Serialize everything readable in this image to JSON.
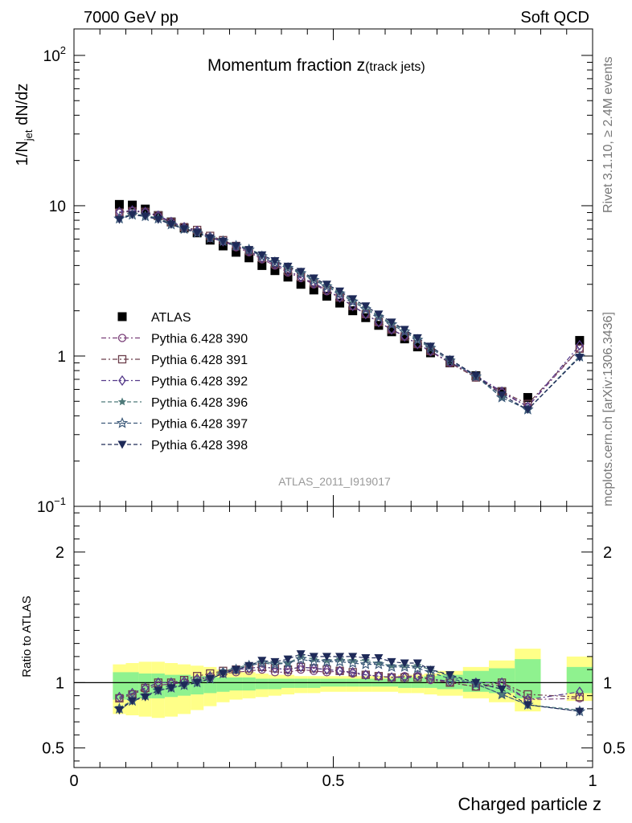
{
  "header": {
    "left": "7000 GeV pp",
    "right": "Soft QCD",
    "side_top": "Rivet 3.1.10, ≥ 2.4M events",
    "side_bottom": "mcplots.cern.ch [arXiv:1306.3436]"
  },
  "chart_data": [
    {
      "type": "scatter",
      "title": "Momentum fraction z",
      "title_sub": "(track jets)",
      "ylabel_main": "1/N",
      "ylabel_sub": "jet",
      "ylabel_tail": " dN/dz",
      "yscale": "log",
      "ylim": [
        0.1,
        150
      ],
      "xlim": [
        0,
        1
      ],
      "yticks": [
        {
          "label": "10",
          "exp": "−1"
        },
        {
          "label": "1",
          "exp": ""
        },
        {
          "label": "10",
          "exp": ""
        },
        {
          "label": "10",
          "exp": "2"
        }
      ],
      "watermark": "ATLAS_2011_I919017",
      "legend_position": "middle-left",
      "x": [
        0.0875,
        0.1125,
        0.1375,
        0.1625,
        0.1875,
        0.2125,
        0.2375,
        0.2625,
        0.2875,
        0.3125,
        0.3375,
        0.3625,
        0.3875,
        0.4125,
        0.4375,
        0.4625,
        0.4875,
        0.5125,
        0.5375,
        0.5625,
        0.5875,
        0.6125,
        0.6375,
        0.6625,
        0.6875,
        0.725,
        0.775,
        0.825,
        0.875,
        0.975
      ],
      "series": [
        {
          "name": "ATLAS",
          "marker": "square-filled",
          "color": "#000000",
          "values": [
            10.2,
            10.1,
            9.5,
            8.6,
            7.8,
            7.1,
            6.6,
            5.9,
            5.4,
            4.9,
            4.5,
            4.0,
            3.7,
            3.35,
            3.0,
            2.75,
            2.5,
            2.25,
            2.0,
            1.8,
            1.6,
            1.45,
            1.3,
            1.15,
            1.05,
            0.9,
            0.74,
            0.58,
            0.53,
            1.27
          ]
        },
        {
          "name": "Pythia 6.428 390",
          "marker": "circle-open",
          "color": "#7a3f78",
          "values": [
            9.0,
            9.2,
            9.0,
            8.5,
            7.7,
            7.1,
            6.7,
            6.1,
            5.8,
            5.3,
            4.9,
            4.4,
            4.0,
            3.6,
            3.3,
            3.0,
            2.7,
            2.45,
            2.15,
            1.9,
            1.68,
            1.5,
            1.36,
            1.2,
            1.07,
            0.9,
            0.72,
            0.57,
            0.46,
            1.12
          ]
        },
        {
          "name": "Pythia 6.428 391",
          "marker": "square-open",
          "color": "#6b3d4a",
          "values": [
            9.0,
            9.2,
            9.1,
            8.6,
            7.8,
            7.2,
            6.9,
            6.3,
            5.9,
            5.4,
            5.0,
            4.5,
            4.1,
            3.7,
            3.35,
            3.05,
            2.75,
            2.45,
            2.15,
            1.9,
            1.68,
            1.5,
            1.35,
            1.2,
            1.08,
            0.9,
            0.72,
            0.58,
            0.48,
            1.12
          ]
        },
        {
          "name": "Pythia 6.428 392",
          "marker": "diamond-open",
          "color": "#553a8a",
          "values": [
            9.1,
            9.3,
            9.1,
            8.6,
            7.8,
            7.2,
            6.8,
            6.2,
            5.8,
            5.4,
            5.0,
            4.5,
            4.1,
            3.7,
            3.35,
            3.05,
            2.75,
            2.45,
            2.15,
            1.9,
            1.68,
            1.5,
            1.35,
            1.2,
            1.08,
            0.91,
            0.74,
            0.58,
            0.46,
            1.18
          ]
        },
        {
          "name": "Pythia 6.428 396",
          "marker": "star-filled",
          "color": "#4e7a7a",
          "values": [
            8.3,
            8.8,
            8.6,
            8.3,
            7.6,
            7.1,
            6.7,
            6.2,
            5.9,
            5.5,
            5.2,
            4.7,
            4.3,
            3.9,
            3.6,
            3.25,
            2.95,
            2.65,
            2.35,
            2.1,
            1.85,
            1.65,
            1.48,
            1.3,
            1.15,
            0.95,
            0.74,
            0.53,
            0.44,
            1.0
          ]
        },
        {
          "name": "Pythia 6.428 397",
          "marker": "star-open",
          "color": "#3d5a7a",
          "values": [
            8.2,
            8.7,
            8.5,
            8.2,
            7.5,
            7.0,
            6.6,
            6.1,
            5.8,
            5.4,
            5.1,
            4.6,
            4.2,
            3.85,
            3.55,
            3.2,
            2.9,
            2.6,
            2.3,
            2.05,
            1.82,
            1.62,
            1.45,
            1.28,
            1.13,
            0.93,
            0.73,
            0.53,
            0.44,
            0.99
          ]
        },
        {
          "name": "Pythia 6.428 398",
          "marker": "triangle-down-filled",
          "color": "#1e2a58",
          "values": [
            8.1,
            8.7,
            8.5,
            8.1,
            7.5,
            7.0,
            6.6,
            6.1,
            5.8,
            5.4,
            5.1,
            4.7,
            4.3,
            3.95,
            3.65,
            3.3,
            3.0,
            2.7,
            2.4,
            2.15,
            1.9,
            1.68,
            1.5,
            1.32,
            1.16,
            0.95,
            0.74,
            0.55,
            0.44,
            0.98
          ]
        }
      ]
    },
    {
      "type": "scatter",
      "ylabel": "Ratio to ATLAS",
      "ylim": [
        0.35,
        2.35
      ],
      "xlim": [
        0,
        1
      ],
      "xlabel": "Charged particle z",
      "xticks": [
        "0",
        "0.5",
        "1"
      ],
      "yticks": [
        "0.5",
        "1",
        "2"
      ],
      "reference_line": 1,
      "bands": {
        "inner_color": "#8ff28f",
        "outer_color": "#ffff88",
        "edges": [
          0.075,
          0.1,
          0.125,
          0.15,
          0.175,
          0.2,
          0.225,
          0.25,
          0.275,
          0.3,
          0.325,
          0.35,
          0.375,
          0.4,
          0.425,
          0.45,
          0.475,
          0.5,
          0.525,
          0.55,
          0.575,
          0.6,
          0.625,
          0.65,
          0.675,
          0.7,
          0.75,
          0.8,
          0.85,
          0.9,
          0.95,
          1.0
        ],
        "inner": [
          [
            0.87,
            1.08
          ],
          [
            0.87,
            1.08
          ],
          [
            0.88,
            1.07
          ],
          [
            0.88,
            1.07
          ],
          [
            0.89,
            1.06
          ],
          [
            0.9,
            1.06
          ],
          [
            0.91,
            1.05
          ],
          [
            0.92,
            1.05
          ],
          [
            0.93,
            1.04
          ],
          [
            0.94,
            1.04
          ],
          [
            0.94,
            1.04
          ],
          [
            0.95,
            1.03
          ],
          [
            0.95,
            1.03
          ],
          [
            0.96,
            1.03
          ],
          [
            0.96,
            1.03
          ],
          [
            0.96,
            1.03
          ],
          [
            0.97,
            1.03
          ],
          [
            0.97,
            1.03
          ],
          [
            0.97,
            1.03
          ],
          [
            0.97,
            1.03
          ],
          [
            0.97,
            1.03
          ],
          [
            0.97,
            1.03
          ],
          [
            0.96,
            1.04
          ],
          [
            0.96,
            1.04
          ],
          [
            0.96,
            1.05
          ],
          [
            0.95,
            1.06
          ],
          [
            0.93,
            1.09
          ],
          [
            0.92,
            1.11
          ],
          [
            0.88,
            1.18
          ],
          null,
          [
            0.92,
            1.12
          ]
        ],
        "outer": [
          [
            0.76,
            1.14
          ],
          [
            0.75,
            1.15
          ],
          [
            0.74,
            1.16
          ],
          [
            0.73,
            1.16
          ],
          [
            0.74,
            1.15
          ],
          [
            0.76,
            1.14
          ],
          [
            0.79,
            1.13
          ],
          [
            0.82,
            1.12
          ],
          [
            0.85,
            1.1
          ],
          [
            0.87,
            1.09
          ],
          [
            0.88,
            1.08
          ],
          [
            0.89,
            1.07
          ],
          [
            0.9,
            1.06
          ],
          [
            0.91,
            1.06
          ],
          [
            0.92,
            1.05
          ],
          [
            0.92,
            1.05
          ],
          [
            0.93,
            1.05
          ],
          [
            0.93,
            1.05
          ],
          [
            0.93,
            1.05
          ],
          [
            0.93,
            1.05
          ],
          [
            0.93,
            1.05
          ],
          [
            0.93,
            1.05
          ],
          [
            0.92,
            1.06
          ],
          [
            0.92,
            1.06
          ],
          [
            0.91,
            1.07
          ],
          [
            0.9,
            1.09
          ],
          [
            0.88,
            1.12
          ],
          [
            0.85,
            1.17
          ],
          [
            0.78,
            1.26
          ],
          null,
          [
            0.86,
            1.2
          ]
        ]
      },
      "x": [
        0.0875,
        0.1125,
        0.1375,
        0.1625,
        0.1875,
        0.2125,
        0.2375,
        0.2625,
        0.2875,
        0.3125,
        0.3375,
        0.3625,
        0.3875,
        0.4125,
        0.4375,
        0.4625,
        0.4875,
        0.5125,
        0.5375,
        0.5625,
        0.5875,
        0.6125,
        0.6375,
        0.6625,
        0.6875,
        0.725,
        0.775,
        0.825,
        0.875,
        0.975
      ],
      "series": [
        {
          "name": "Pythia 6.428 390",
          "marker": "circle-open",
          "color": "#7a3f78",
          "values": [
            0.88,
            0.91,
            0.95,
            0.98,
            0.99,
            1.0,
            1.02,
            1.04,
            1.07,
            1.08,
            1.09,
            1.1,
            1.08,
            1.08,
            1.1,
            1.09,
            1.08,
            1.09,
            1.07,
            1.06,
            1.05,
            1.04,
            1.05,
            1.05,
            1.02,
            1.0,
            0.97,
            0.98,
            0.87,
            0.88
          ]
        },
        {
          "name": "Pythia 6.428 391",
          "marker": "square-open",
          "color": "#6b3d4a",
          "values": [
            0.88,
            0.91,
            0.96,
            1.0,
            1.0,
            1.02,
            1.05,
            1.07,
            1.09,
            1.1,
            1.11,
            1.12,
            1.11,
            1.1,
            1.12,
            1.11,
            1.1,
            1.09,
            1.08,
            1.06,
            1.05,
            1.04,
            1.04,
            1.04,
            1.03,
            1.0,
            0.97,
            1.0,
            0.91,
            0.89
          ]
        },
        {
          "name": "Pythia 6.428 392",
          "marker": "diamond-open",
          "color": "#553a8a",
          "values": [
            0.89,
            0.92,
            0.96,
            1.0,
            1.0,
            1.01,
            1.03,
            1.05,
            1.08,
            1.1,
            1.11,
            1.12,
            1.11,
            1.1,
            1.12,
            1.11,
            1.1,
            1.09,
            1.08,
            1.06,
            1.05,
            1.04,
            1.04,
            1.05,
            1.03,
            1.01,
            1.0,
            1.0,
            0.87,
            0.93
          ]
        },
        {
          "name": "Pythia 6.428 396",
          "marker": "star-filled",
          "color": "#4e7a7a",
          "values": [
            0.81,
            0.86,
            0.9,
            0.94,
            0.96,
            0.99,
            1.01,
            1.04,
            1.09,
            1.11,
            1.14,
            1.16,
            1.15,
            1.15,
            1.2,
            1.18,
            1.17,
            1.18,
            1.17,
            1.17,
            1.15,
            1.13,
            1.13,
            1.13,
            1.1,
            1.05,
            0.99,
            0.91,
            0.83,
            0.79
          ]
        },
        {
          "name": "Pythia 6.428 397",
          "marker": "star-open",
          "color": "#3d5a7a",
          "values": [
            0.8,
            0.86,
            0.9,
            0.94,
            0.96,
            0.98,
            1.0,
            1.03,
            1.07,
            1.1,
            1.13,
            1.15,
            1.14,
            1.15,
            1.18,
            1.16,
            1.16,
            1.16,
            1.15,
            1.14,
            1.14,
            1.12,
            1.12,
            1.11,
            1.08,
            1.03,
            0.99,
            0.91,
            0.83,
            0.78
          ]
        },
        {
          "name": "Pythia 6.428 398",
          "marker": "triangle-down-filled",
          "color": "#1e2a58",
          "values": [
            0.79,
            0.86,
            0.89,
            0.94,
            0.96,
            0.98,
            1.0,
            1.03,
            1.07,
            1.1,
            1.13,
            1.17,
            1.16,
            1.18,
            1.22,
            1.2,
            1.2,
            1.2,
            1.2,
            1.19,
            1.19,
            1.16,
            1.15,
            1.15,
            1.1,
            1.06,
            1.0,
            0.95,
            0.83,
            0.78
          ]
        }
      ]
    }
  ]
}
